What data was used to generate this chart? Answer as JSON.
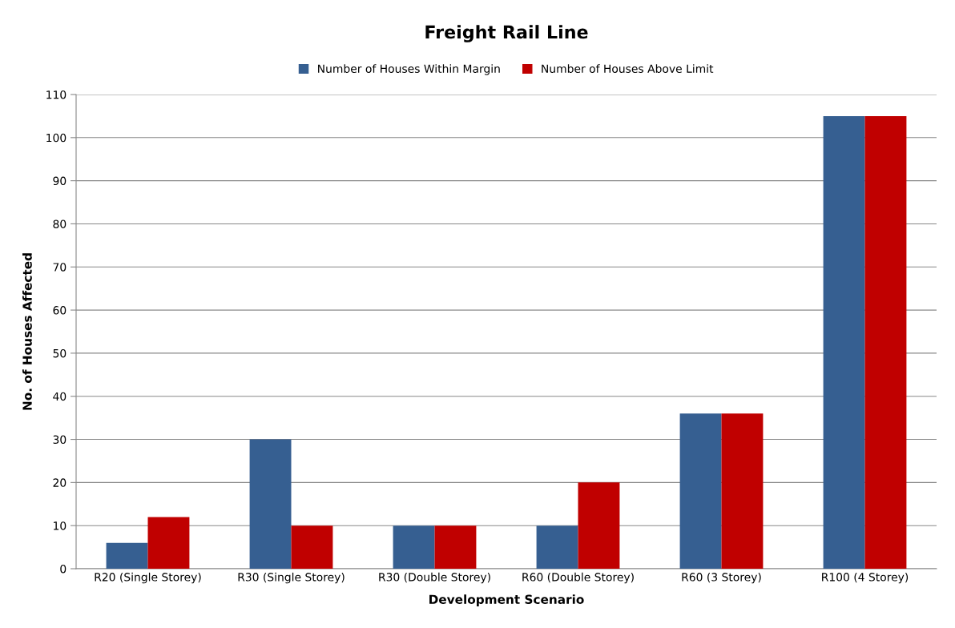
{
  "chart_data": {
    "type": "bar",
    "title": "Freight Rail Line",
    "xlabel": "Development Scenario",
    "ylabel": "No. of Houses Affected",
    "categories": [
      "R20 (Single Storey)",
      "R30 (Single Storey)",
      "R30 (Double Storey)",
      "R60 (Double Storey)",
      "R60 (3 Storey)",
      "R100 (4 Storey)"
    ],
    "series": [
      {
        "name": "Number of Houses Within Margin",
        "color": "#365f91",
        "values": [
          6,
          30,
          10,
          10,
          36,
          105
        ]
      },
      {
        "name": "Number of Houses Above Limit",
        "color": "#c00000",
        "values": [
          12,
          10,
          10,
          20,
          36,
          105
        ]
      }
    ],
    "ylim": [
      0,
      110
    ],
    "yticks": [
      0,
      10,
      20,
      30,
      40,
      50,
      60,
      70,
      80,
      90,
      100,
      110
    ],
    "grid": "y",
    "legend": "top"
  }
}
